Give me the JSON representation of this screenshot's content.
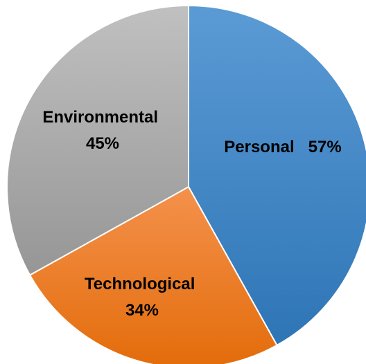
{
  "chart_data": {
    "type": "pie",
    "title": "",
    "legend": "none",
    "slices": [
      {
        "name": "Personal",
        "label": "Personal",
        "value_label": "57%",
        "value": 57,
        "color": "#5b9bd5",
        "color_dark": "#2e75b6"
      },
      {
        "name": "Technological",
        "label": "Technological",
        "value_label": "34%",
        "value": 34,
        "color": "#f4914c",
        "color_dark": "#e36c0a"
      },
      {
        "name": "Environmental",
        "label": "Environmental",
        "value_label": "45%",
        "value": 45,
        "color": "#c0c0c0",
        "color_dark": "#969696"
      }
    ]
  }
}
